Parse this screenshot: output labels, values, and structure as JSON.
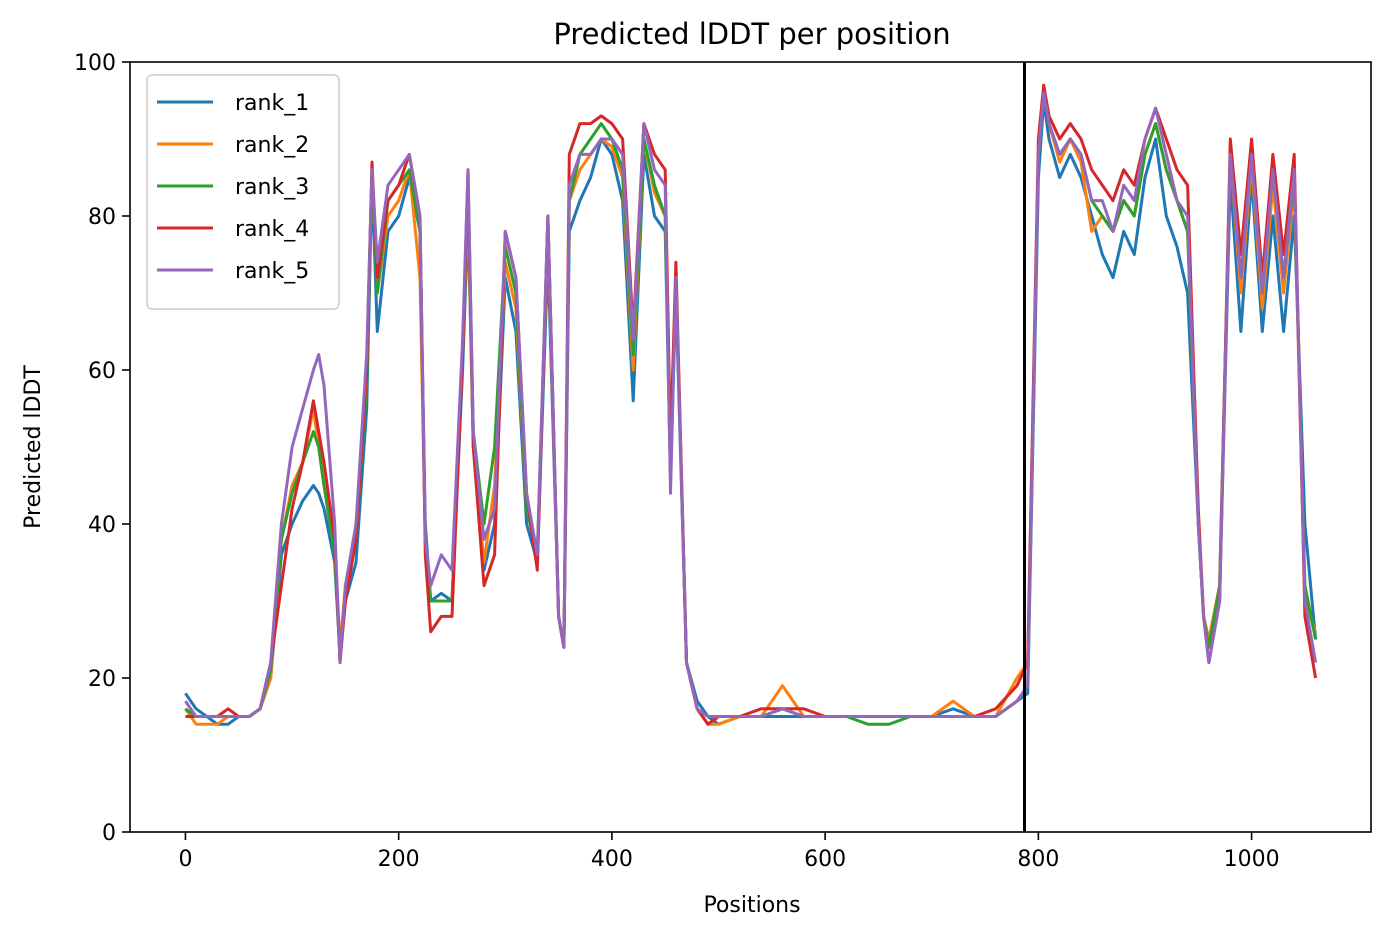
{
  "chart_data": {
    "type": "line",
    "title": "Predicted lDDT per position",
    "xlabel": "Positions",
    "ylabel": "Predicted lDDT",
    "xlim": [
      -52,
      1112
    ],
    "ylim": [
      0,
      100
    ],
    "xticks": [
      0,
      200,
      400,
      600,
      800,
      1000
    ],
    "yticks": [
      0,
      20,
      40,
      60,
      80,
      100
    ],
    "grid": false,
    "legend_position": "top-left",
    "vertical_line_x": 787,
    "x": [
      0,
      10,
      20,
      30,
      40,
      50,
      60,
      70,
      80,
      90,
      100,
      110,
      120,
      125,
      130,
      140,
      145,
      150,
      160,
      170,
      175,
      180,
      190,
      200,
      210,
      220,
      225,
      230,
      240,
      250,
      260,
      265,
      270,
      280,
      290,
      300,
      310,
      320,
      330,
      340,
      350,
      355,
      360,
      370,
      380,
      390,
      400,
      410,
      420,
      430,
      440,
      450,
      455,
      460,
      470,
      480,
      490,
      500,
      520,
      540,
      560,
      580,
      600,
      620,
      640,
      660,
      680,
      700,
      720,
      740,
      760,
      780,
      790,
      800,
      805,
      810,
      820,
      830,
      840,
      850,
      860,
      870,
      880,
      890,
      900,
      910,
      920,
      930,
      940,
      950,
      955,
      960,
      970,
      980,
      990,
      1000,
      1010,
      1020,
      1030,
      1040,
      1050,
      1060
    ],
    "series": [
      {
        "name": "rank_1",
        "color": "#1f77b4",
        "values": [
          18,
          16,
          15,
          14,
          14,
          15,
          15,
          16,
          20,
          36,
          40,
          43,
          45,
          44,
          42,
          35,
          23,
          30,
          35,
          55,
          85,
          65,
          78,
          80,
          85,
          78,
          40,
          30,
          31,
          30,
          60,
          80,
          50,
          34,
          40,
          72,
          65,
          40,
          35,
          75,
          28,
          24,
          78,
          82,
          85,
          90,
          88,
          82,
          56,
          88,
          80,
          78,
          46,
          70,
          22,
          17,
          15,
          14,
          15,
          15,
          15,
          15,
          15,
          15,
          15,
          15,
          15,
          15,
          16,
          15,
          15,
          17,
          18,
          85,
          95,
          90,
          85,
          88,
          85,
          80,
          75,
          72,
          78,
          75,
          85,
          90,
          80,
          76,
          70,
          40,
          28,
          24,
          30,
          85,
          65,
          85,
          65,
          80,
          65,
          80,
          40,
          25
        ]
      },
      {
        "name": "rank_2",
        "color": "#ff7f0e",
        "values": [
          16,
          14,
          14,
          14,
          15,
          15,
          15,
          16,
          20,
          38,
          45,
          48,
          55,
          50,
          45,
          38,
          24,
          32,
          38,
          60,
          86,
          70,
          80,
          82,
          86,
          72,
          38,
          30,
          30,
          30,
          62,
          82,
          50,
          35,
          45,
          74,
          68,
          42,
          36,
          78,
          28,
          24,
          82,
          86,
          88,
          90,
          89,
          85,
          60,
          90,
          83,
          80,
          48,
          72,
          22,
          16,
          14,
          14,
          15,
          15,
          19,
          15,
          15,
          15,
          15,
          15,
          15,
          15,
          17,
          15,
          15,
          20,
          22,
          88,
          96,
          92,
          87,
          90,
          87,
          78,
          80,
          78,
          82,
          80,
          88,
          92,
          86,
          82,
          78,
          40,
          28,
          25,
          32,
          88,
          70,
          87,
          68,
          84,
          70,
          84,
          30,
          26
        ]
      },
      {
        "name": "rank_3",
        "color": "#2ca02c",
        "values": [
          16,
          15,
          15,
          15,
          15,
          15,
          15,
          16,
          21,
          38,
          44,
          48,
          52,
          50,
          45,
          36,
          23,
          31,
          38,
          58,
          86,
          70,
          82,
          84,
          86,
          78,
          38,
          30,
          30,
          30,
          62,
          84,
          52,
          40,
          50,
          76,
          70,
          42,
          36,
          80,
          28,
          24,
          82,
          88,
          90,
          92,
          90,
          86,
          62,
          90,
          84,
          80,
          48,
          72,
          22,
          16,
          14,
          15,
          15,
          15,
          16,
          15,
          15,
          15,
          14,
          14,
          15,
          15,
          15,
          15,
          15,
          17,
          19,
          88,
          96,
          92,
          88,
          90,
          88,
          82,
          80,
          78,
          82,
          80,
          88,
          92,
          86,
          82,
          78,
          40,
          28,
          24,
          32,
          88,
          72,
          88,
          70,
          86,
          72,
          85,
          32,
          25
        ]
      },
      {
        "name": "rank_4",
        "color": "#d62728",
        "values": [
          15,
          15,
          15,
          15,
          16,
          15,
          15,
          16,
          22,
          32,
          42,
          48,
          56,
          52,
          48,
          38,
          22,
          30,
          38,
          60,
          87,
          72,
          82,
          84,
          88,
          80,
          36,
          26,
          28,
          28,
          62,
          86,
          50,
          32,
          36,
          78,
          72,
          44,
          34,
          80,
          28,
          24,
          88,
          92,
          92,
          93,
          92,
          90,
          65,
          92,
          88,
          86,
          50,
          74,
          22,
          16,
          14,
          15,
          15,
          16,
          16,
          16,
          15,
          15,
          15,
          15,
          15,
          15,
          15,
          15,
          16,
          19,
          22,
          90,
          97,
          93,
          90,
          92,
          90,
          86,
          84,
          82,
          86,
          84,
          90,
          94,
          90,
          86,
          84,
          42,
          28,
          22,
          30,
          90,
          75,
          90,
          72,
          88,
          75,
          88,
          28,
          20
        ]
      },
      {
        "name": "rank_5",
        "color": "#9467bd",
        "values": [
          17,
          15,
          15,
          15,
          15,
          15,
          15,
          16,
          22,
          40,
          50,
          55,
          60,
          62,
          58,
          40,
          22,
          32,
          40,
          62,
          86,
          74,
          84,
          86,
          88,
          80,
          38,
          32,
          36,
          34,
          64,
          86,
          52,
          38,
          42,
          78,
          72,
          44,
          36,
          80,
          28,
          24,
          84,
          88,
          88,
          90,
          90,
          88,
          64,
          92,
          86,
          84,
          44,
          72,
          22,
          16,
          15,
          15,
          15,
          15,
          16,
          15,
          15,
          15,
          15,
          15,
          15,
          15,
          15,
          15,
          15,
          17,
          19,
          88,
          96,
          92,
          88,
          90,
          88,
          82,
          82,
          78,
          84,
          82,
          90,
          94,
          88,
          82,
          80,
          40,
          28,
          22,
          30,
          88,
          72,
          88,
          70,
          86,
          72,
          86,
          30,
          22
        ]
      }
    ]
  }
}
